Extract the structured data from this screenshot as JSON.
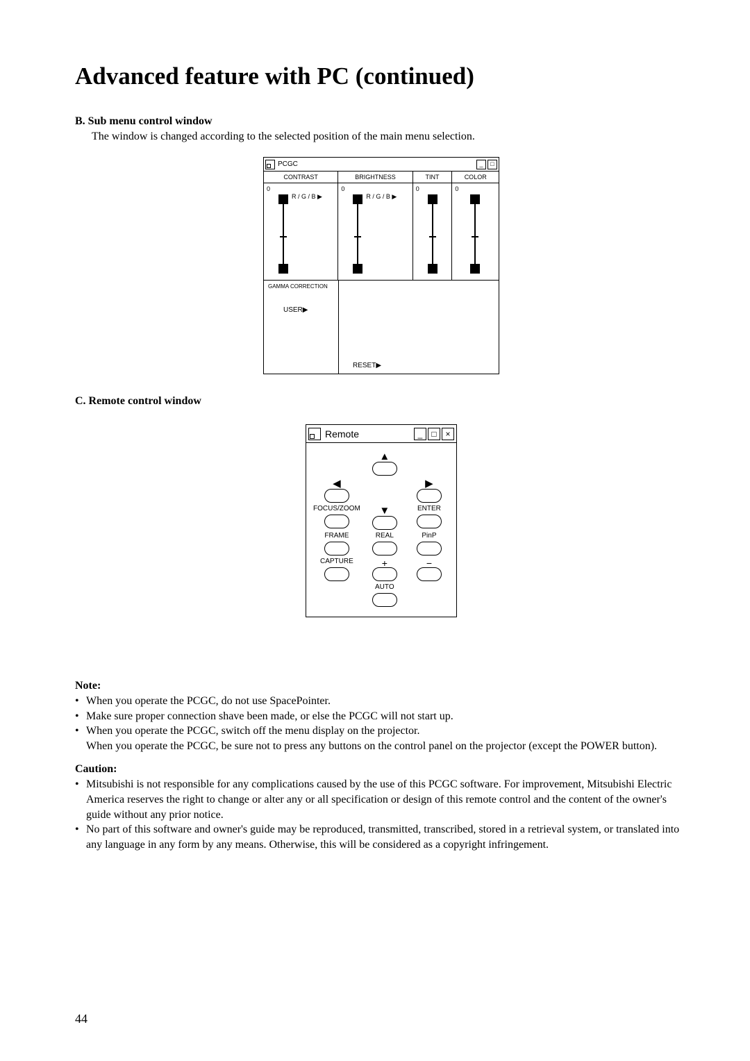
{
  "page_title": "Advanced feature with PC (continued)",
  "section_b": {
    "heading": "B. Sub menu control window",
    "desc": "The window is changed according to the selected position of the main menu selection."
  },
  "pcgc": {
    "title": "PCGC",
    "tabs": {
      "contrast": "CONTRAST",
      "brightness": "BRIGHTNESS",
      "tint": "TINT",
      "color": "COLOR"
    },
    "values": {
      "contrast": "0",
      "brightness": "0",
      "tint": "0",
      "color": "0"
    },
    "rgb_label": "R / G / B ▶",
    "gamma": "GAMMA CORRECTION",
    "user": "USER▶",
    "reset": "RESET▶"
  },
  "section_c": {
    "heading": "C. Remote control window"
  },
  "remote": {
    "title": "Remote",
    "arrows": {
      "up": "▲",
      "down": "▼",
      "left": "◀",
      "right": "▶"
    },
    "labels": {
      "focus_zoom": "FOCUS/ZOOM",
      "enter": "ENTER",
      "frame": "FRAME",
      "real": "REAL",
      "pinp": "PinP",
      "capture": "CAPTURE",
      "plus": "+",
      "minus": "−",
      "auto": "AUTO"
    }
  },
  "note": {
    "heading": "Note:",
    "items": [
      "When you operate the PCGC, do not use SpacePointer.",
      "Make sure proper connection shave been made, or else the PCGC will not start up.",
      "When you operate the PCGC, switch off the menu display on the projector.\nWhen you operate the PCGC, be sure not to press any buttons on the control panel on the projector (except the POWER button)."
    ]
  },
  "caution": {
    "heading": "Caution:",
    "items": [
      "Mitsubishi is not responsible for any complications caused by the use of this PCGC software. For improvement, Mitsubishi Electric America reserves the right to change or alter any or all specification or design of this remote control and the content of the owner's guide without any prior notice.",
      "No part of this software and owner's guide may be reproduced, transmitted, transcribed, stored in a retrieval system, or translated into any language in any form by any means. Otherwise, this will be considered as a copyright infringement."
    ]
  },
  "page_number": "44"
}
